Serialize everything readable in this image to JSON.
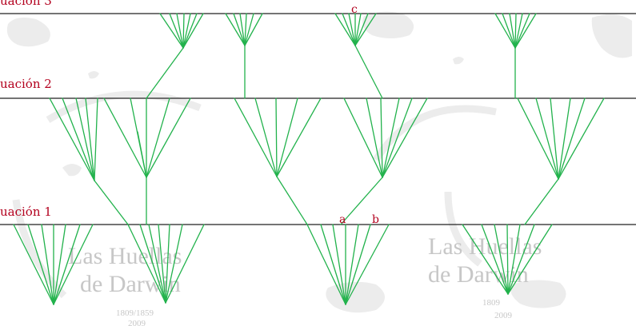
{
  "levels": [
    {
      "label": "uación 3"
    },
    {
      "label": "uación 2"
    },
    {
      "label": "uación 1"
    }
  ],
  "markers": {
    "a": "a",
    "b": "b",
    "c": "c"
  },
  "watermark": {
    "line1": "Las Huellas",
    "line2": "de Darwin",
    "year_left": "1809/1859",
    "year_left_2": "2009",
    "year_right": "1809",
    "year_right_2": "2009"
  },
  "colors": {
    "branch": "#22b24c",
    "level_line": "#222222",
    "label": "#b3001e",
    "watermark": "#c7c7c7",
    "blob": "#ececec"
  }
}
